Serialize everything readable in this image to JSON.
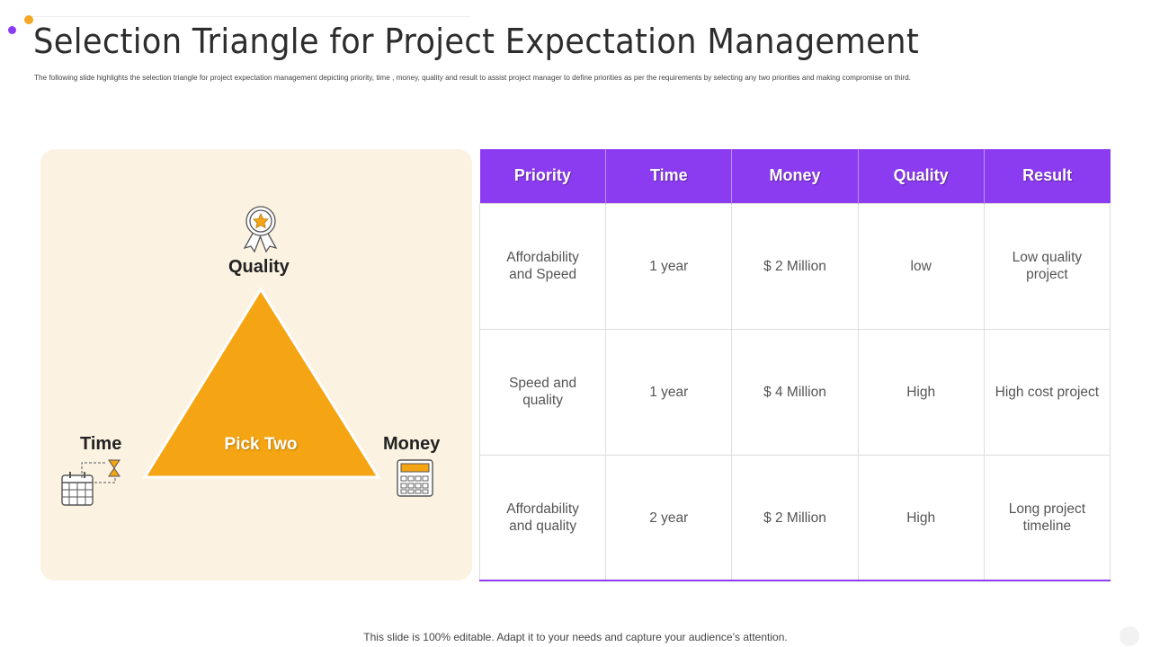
{
  "title": "Selection Triangle for Project Expectation Management",
  "subtitle": "The following slide highlights the selection triangle for project expectation management depicting priority, time , money, quality and result to assist project manager to define priorities as per the requirements by selecting any two priorities and making compromise on third.",
  "triangle": {
    "top_label": "Quality",
    "left_label": "Time",
    "right_label": "Money",
    "center_label": "Pick Two",
    "icons": [
      "award-ribbon-icon",
      "calendar-hourglass-icon",
      "calculator-icon"
    ]
  },
  "table": {
    "headers": [
      "Priority",
      "Time",
      "Money",
      "Quality",
      "Result"
    ],
    "rows": [
      [
        "Affordability and Speed",
        "1 year",
        "$ 2 Million",
        "low",
        "Low quality project"
      ],
      [
        "Speed and quality",
        "1 year",
        "$ 4 Million",
        "High",
        "High cost project"
      ],
      [
        "Affordability and quality",
        "2 year",
        "$ 2 Million",
        "High",
        "Long project timeline"
      ]
    ]
  },
  "footer": "This slide is 100% editable. Adapt it to your needs and capture your audience’s attention.",
  "colors": {
    "accent_purple": "#8c3cf0",
    "accent_orange": "#f5a623",
    "panel_bg": "#fbf2e2",
    "triangle_fill": "#f5a513"
  }
}
